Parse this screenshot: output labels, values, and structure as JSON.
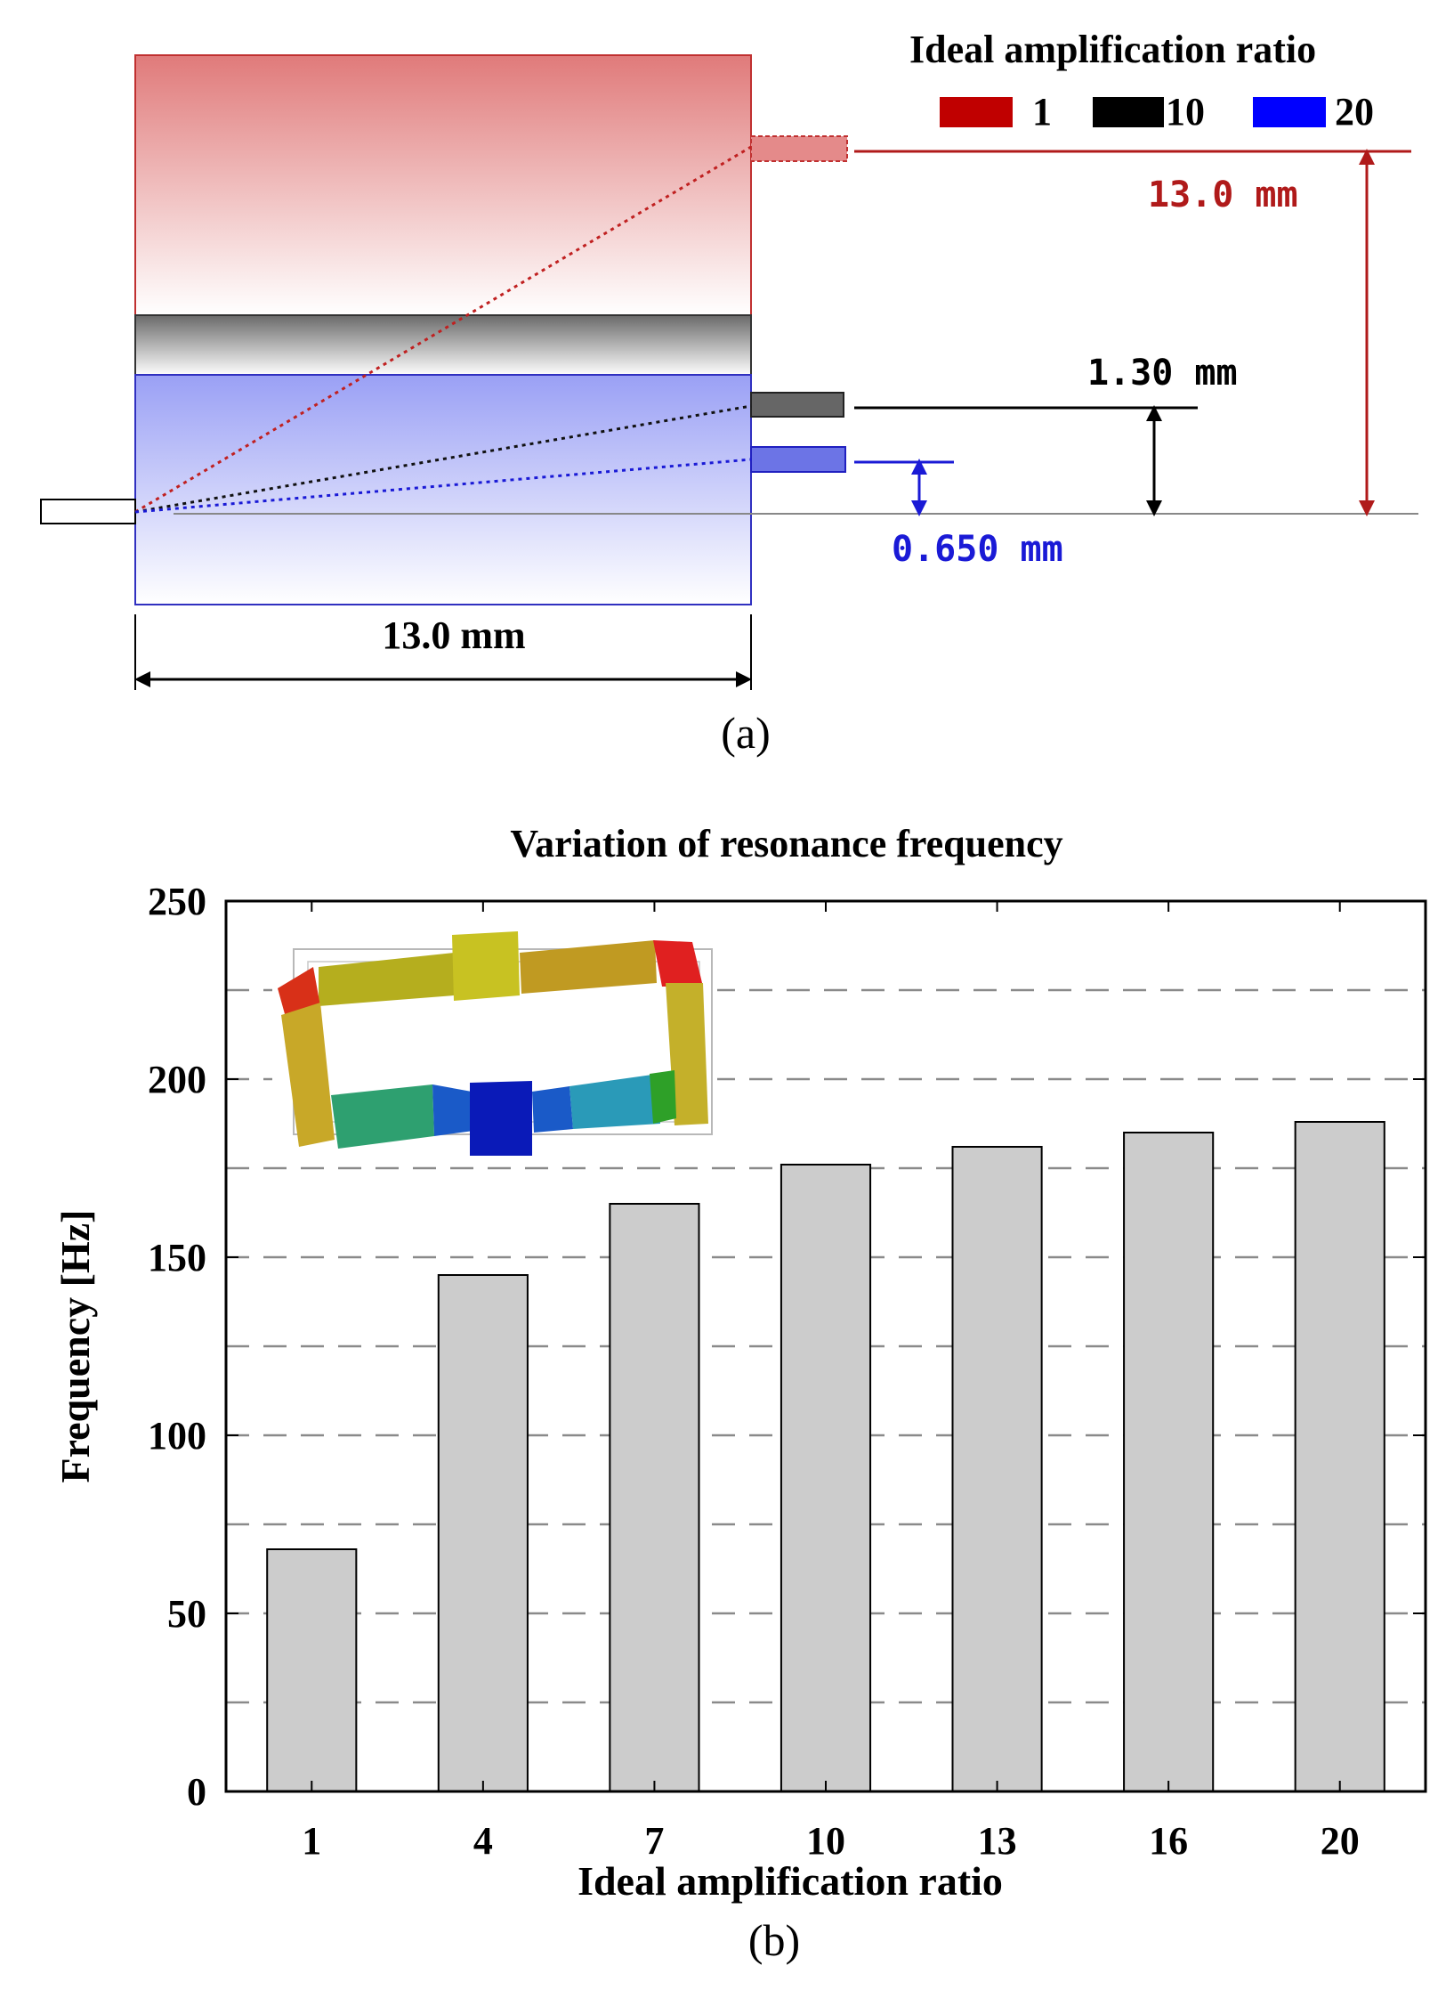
{
  "figure_a": {
    "legend_title": "Ideal amplification ratio",
    "legend": [
      {
        "label": "1",
        "color": "#c00000"
      },
      {
        "label": "10",
        "color": "#000000"
      },
      {
        "label": "20",
        "color": "#0000ff"
      }
    ],
    "dims": {
      "ratio1": "13.0 mm",
      "ratio10": "1.30 mm",
      "ratio20": "0.650 mm",
      "width": "13.0 mm"
    },
    "caption": "(a)"
  },
  "figure_b": {
    "caption": "(b)"
  },
  "chart_data": {
    "type": "bar",
    "title": "Variation of resonance frequency",
    "xlabel": "Ideal amplification ratio",
    "ylabel": "Frequency [Hz]",
    "categories": [
      "1",
      "4",
      "7",
      "10",
      "13",
      "16",
      "20"
    ],
    "values": [
      68,
      145,
      165,
      176,
      181,
      185,
      188
    ],
    "ylim": [
      0,
      250
    ],
    "yticks": [
      0,
      50,
      100,
      150,
      200,
      250
    ],
    "ytick_labels": [
      "0",
      "50",
      "100",
      "150",
      "200",
      "250"
    ],
    "grid": "dashed horizontal every 25",
    "bar_color": "#cccccc"
  }
}
